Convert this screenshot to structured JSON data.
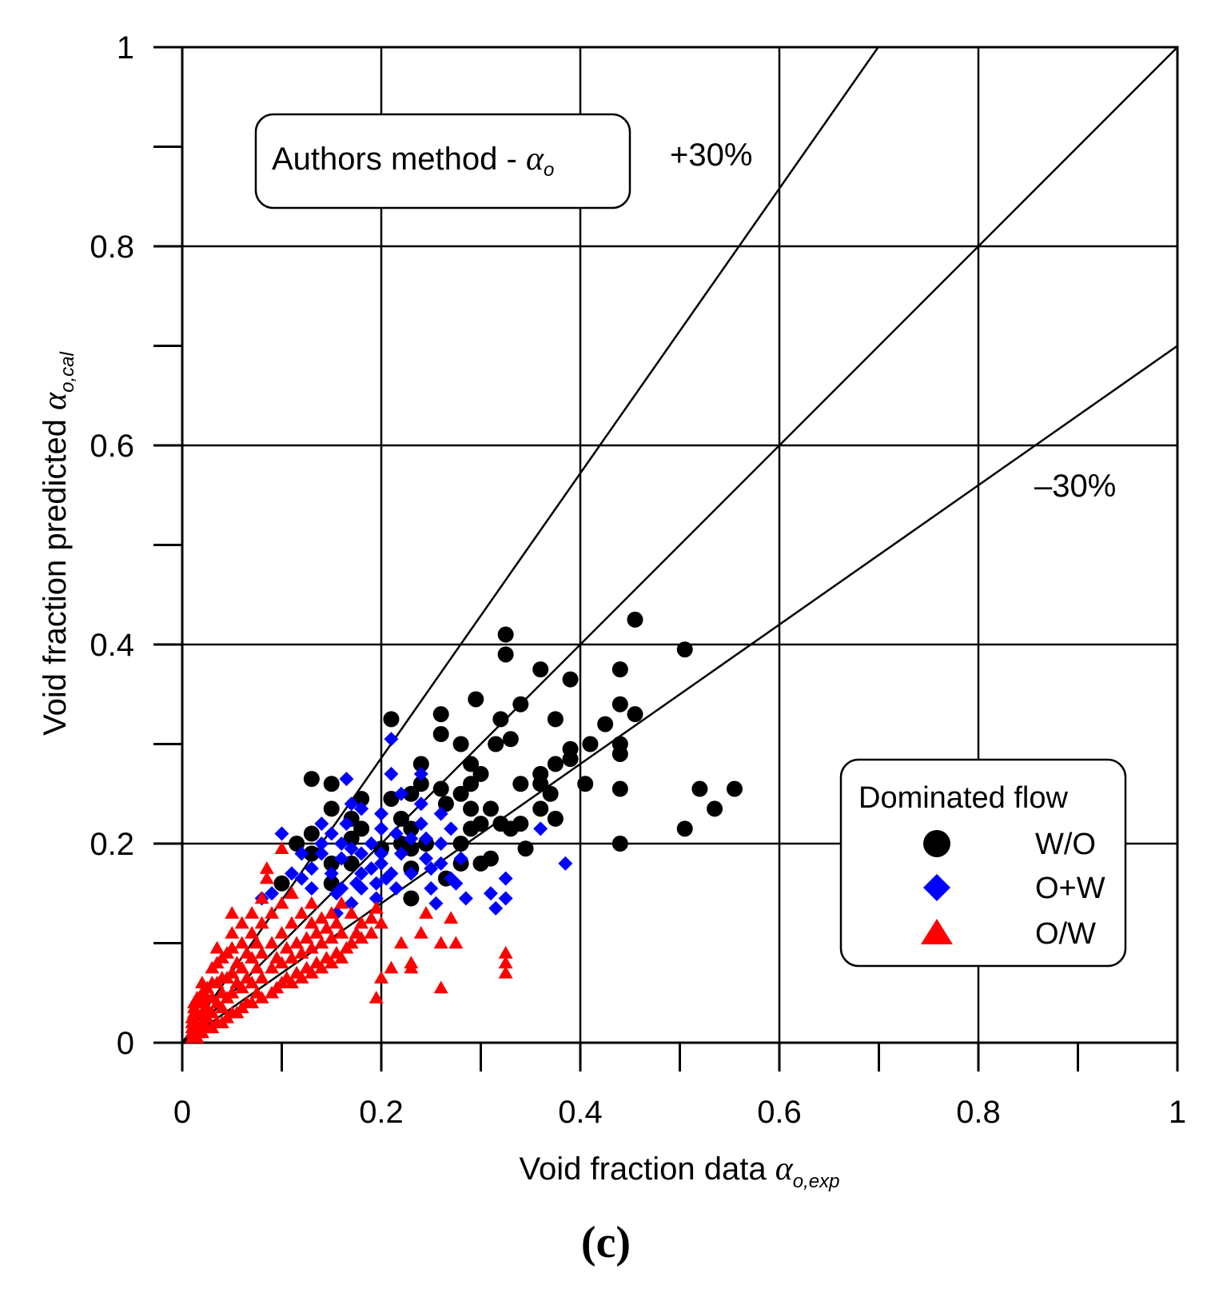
{
  "chart_data": {
    "type": "scatter",
    "title": "",
    "xlabel": "Void fraction data",
    "xlabel_symbol": "α",
    "xlabel_sub": "o,exp",
    "ylabel": "Void fraction predicted",
    "ylabel_symbol": "α",
    "ylabel_sub": "o,cal",
    "xlim": [
      0,
      1
    ],
    "ylim": [
      0,
      1
    ],
    "x_ticks": [
      "0",
      "0.2",
      "0.4",
      "0.6",
      "0.8",
      "1"
    ],
    "y_ticks": [
      "0",
      "0.2",
      "0.4",
      "0.6",
      "0.8",
      "1"
    ],
    "grid": true,
    "annotation_box": {
      "text": "Authors method - ",
      "symbol": "α",
      "sub": "o"
    },
    "reference_lines": [
      {
        "name": "+30%",
        "label": "+30%",
        "slope": 1.43
      },
      {
        "name": "parity",
        "label": "",
        "slope": 1.0
      },
      {
        "name": "-30%",
        "label": "–30%",
        "slope": 0.7
      }
    ],
    "legend": {
      "title": "Dominated flow",
      "position": "bottom-right"
    },
    "series": [
      {
        "name": "W/O",
        "marker": "circle",
        "color": "#000000",
        "points": [
          [
            0.1,
            0.16
          ],
          [
            0.13,
            0.265
          ],
          [
            0.15,
            0.26
          ],
          [
            0.15,
            0.235
          ],
          [
            0.13,
            0.21
          ],
          [
            0.115,
            0.2
          ],
          [
            0.13,
            0.19
          ],
          [
            0.15,
            0.18
          ],
          [
            0.15,
            0.16
          ],
          [
            0.17,
            0.225
          ],
          [
            0.17,
            0.205
          ],
          [
            0.17,
            0.18
          ],
          [
            0.18,
            0.245
          ],
          [
            0.18,
            0.215
          ],
          [
            0.2,
            0.195
          ],
          [
            0.21,
            0.325
          ],
          [
            0.21,
            0.245
          ],
          [
            0.22,
            0.225
          ],
          [
            0.22,
            0.2
          ],
          [
            0.23,
            0.25
          ],
          [
            0.23,
            0.215
          ],
          [
            0.23,
            0.195
          ],
          [
            0.23,
            0.175
          ],
          [
            0.23,
            0.145
          ],
          [
            0.24,
            0.28
          ],
          [
            0.24,
            0.26
          ],
          [
            0.245,
            0.2
          ],
          [
            0.26,
            0.255
          ],
          [
            0.26,
            0.33
          ],
          [
            0.26,
            0.31
          ],
          [
            0.265,
            0.24
          ],
          [
            0.265,
            0.165
          ],
          [
            0.28,
            0.3
          ],
          [
            0.28,
            0.25
          ],
          [
            0.28,
            0.2
          ],
          [
            0.28,
            0.18
          ],
          [
            0.29,
            0.28
          ],
          [
            0.29,
            0.26
          ],
          [
            0.29,
            0.235
          ],
          [
            0.29,
            0.215
          ],
          [
            0.295,
            0.345
          ],
          [
            0.3,
            0.27
          ],
          [
            0.3,
            0.22
          ],
          [
            0.3,
            0.18
          ],
          [
            0.31,
            0.235
          ],
          [
            0.31,
            0.185
          ],
          [
            0.315,
            0.3
          ],
          [
            0.32,
            0.325
          ],
          [
            0.32,
            0.22
          ],
          [
            0.325,
            0.41
          ],
          [
            0.325,
            0.39
          ],
          [
            0.33,
            0.305
          ],
          [
            0.33,
            0.215
          ],
          [
            0.34,
            0.34
          ],
          [
            0.34,
            0.26
          ],
          [
            0.34,
            0.22
          ],
          [
            0.345,
            0.195
          ],
          [
            0.36,
            0.375
          ],
          [
            0.36,
            0.27
          ],
          [
            0.36,
            0.26
          ],
          [
            0.36,
            0.235
          ],
          [
            0.37,
            0.25
          ],
          [
            0.375,
            0.325
          ],
          [
            0.375,
            0.28
          ],
          [
            0.375,
            0.225
          ],
          [
            0.39,
            0.365
          ],
          [
            0.39,
            0.295
          ],
          [
            0.39,
            0.285
          ],
          [
            0.405,
            0.26
          ],
          [
            0.41,
            0.3
          ],
          [
            0.425,
            0.32
          ],
          [
            0.44,
            0.375
          ],
          [
            0.44,
            0.34
          ],
          [
            0.44,
            0.3
          ],
          [
            0.44,
            0.29
          ],
          [
            0.44,
            0.255
          ],
          [
            0.44,
            0.2
          ],
          [
            0.455,
            0.425
          ],
          [
            0.455,
            0.33
          ],
          [
            0.505,
            0.395
          ],
          [
            0.505,
            0.215
          ],
          [
            0.52,
            0.255
          ],
          [
            0.535,
            0.235
          ],
          [
            0.555,
            0.255
          ]
        ]
      },
      {
        "name": "O+W",
        "marker": "diamond",
        "color": "#0000ff",
        "points": [
          [
            0.1,
            0.21
          ],
          [
            0.08,
            0.145
          ],
          [
            0.09,
            0.15
          ],
          [
            0.11,
            0.17
          ],
          [
            0.12,
            0.165
          ],
          [
            0.12,
            0.19
          ],
          [
            0.13,
            0.175
          ],
          [
            0.13,
            0.155
          ],
          [
            0.14,
            0.22
          ],
          [
            0.14,
            0.2
          ],
          [
            0.14,
            0.19
          ],
          [
            0.15,
            0.21
          ],
          [
            0.15,
            0.17
          ],
          [
            0.155,
            0.15
          ],
          [
            0.155,
            0.13
          ],
          [
            0.16,
            0.2
          ],
          [
            0.16,
            0.185
          ],
          [
            0.16,
            0.155
          ],
          [
            0.165,
            0.22
          ],
          [
            0.165,
            0.265
          ],
          [
            0.17,
            0.24
          ],
          [
            0.17,
            0.195
          ],
          [
            0.17,
            0.14
          ],
          [
            0.175,
            0.16
          ],
          [
            0.18,
            0.19
          ],
          [
            0.18,
            0.17
          ],
          [
            0.18,
            0.155
          ],
          [
            0.18,
            0.235
          ],
          [
            0.19,
            0.2
          ],
          [
            0.19,
            0.175
          ],
          [
            0.195,
            0.16
          ],
          [
            0.195,
            0.145
          ],
          [
            0.2,
            0.23
          ],
          [
            0.2,
            0.215
          ],
          [
            0.2,
            0.19
          ],
          [
            0.2,
            0.18
          ],
          [
            0.205,
            0.165
          ],
          [
            0.21,
            0.305
          ],
          [
            0.21,
            0.27
          ],
          [
            0.21,
            0.17
          ],
          [
            0.215,
            0.21
          ],
          [
            0.215,
            0.155
          ],
          [
            0.22,
            0.25
          ],
          [
            0.22,
            0.19
          ],
          [
            0.23,
            0.17
          ],
          [
            0.23,
            0.205
          ],
          [
            0.24,
            0.27
          ],
          [
            0.24,
            0.24
          ],
          [
            0.24,
            0.22
          ],
          [
            0.245,
            0.205
          ],
          [
            0.245,
            0.185
          ],
          [
            0.25,
            0.175
          ],
          [
            0.25,
            0.155
          ],
          [
            0.255,
            0.14
          ],
          [
            0.26,
            0.23
          ],
          [
            0.26,
            0.18
          ],
          [
            0.26,
            0.2
          ],
          [
            0.27,
            0.215
          ],
          [
            0.27,
            0.165
          ],
          [
            0.275,
            0.16
          ],
          [
            0.28,
            0.185
          ],
          [
            0.285,
            0.145
          ],
          [
            0.31,
            0.15
          ],
          [
            0.315,
            0.135
          ],
          [
            0.325,
            0.165
          ],
          [
            0.325,
            0.145
          ],
          [
            0.36,
            0.215
          ],
          [
            0.385,
            0.18
          ]
        ]
      },
      {
        "name": "O/W",
        "marker": "triangle",
        "color": "#ff0000",
        "points": [
          [
            0.01,
            0.005
          ],
          [
            0.01,
            0.01
          ],
          [
            0.01,
            0.015
          ],
          [
            0.01,
            0.02
          ],
          [
            0.01,
            0.025
          ],
          [
            0.012,
            0.03
          ],
          [
            0.012,
            0.035
          ],
          [
            0.012,
            0.04
          ],
          [
            0.015,
            0.005
          ],
          [
            0.015,
            0.01
          ],
          [
            0.015,
            0.015
          ],
          [
            0.015,
            0.02
          ],
          [
            0.015,
            0.03
          ],
          [
            0.015,
            0.045
          ],
          [
            0.02,
            0.01
          ],
          [
            0.02,
            0.02
          ],
          [
            0.02,
            0.03
          ],
          [
            0.02,
            0.04
          ],
          [
            0.02,
            0.05
          ],
          [
            0.02,
            0.06
          ],
          [
            0.025,
            0.015
          ],
          [
            0.025,
            0.025
          ],
          [
            0.025,
            0.035
          ],
          [
            0.025,
            0.045
          ],
          [
            0.025,
            0.055
          ],
          [
            0.03,
            0.015
          ],
          [
            0.03,
            0.03
          ],
          [
            0.03,
            0.045
          ],
          [
            0.03,
            0.06
          ],
          [
            0.03,
            0.075
          ],
          [
            0.035,
            0.02
          ],
          [
            0.035,
            0.04
          ],
          [
            0.035,
            0.06
          ],
          [
            0.035,
            0.08
          ],
          [
            0.035,
            0.095
          ],
          [
            0.04,
            0.02
          ],
          [
            0.04,
            0.035
          ],
          [
            0.04,
            0.05
          ],
          [
            0.04,
            0.065
          ],
          [
            0.04,
            0.085
          ],
          [
            0.045,
            0.025
          ],
          [
            0.045,
            0.045
          ],
          [
            0.045,
            0.065
          ],
          [
            0.045,
            0.09
          ],
          [
            0.05,
            0.03
          ],
          [
            0.05,
            0.05
          ],
          [
            0.05,
            0.07
          ],
          [
            0.05,
            0.095
          ],
          [
            0.05,
            0.11
          ],
          [
            0.05,
            0.13
          ],
          [
            0.055,
            0.03
          ],
          [
            0.055,
            0.06
          ],
          [
            0.055,
            0.08
          ],
          [
            0.06,
            0.035
          ],
          [
            0.06,
            0.055
          ],
          [
            0.06,
            0.075
          ],
          [
            0.06,
            0.1
          ],
          [
            0.06,
            0.12
          ],
          [
            0.065,
            0.04
          ],
          [
            0.065,
            0.065
          ],
          [
            0.065,
            0.09
          ],
          [
            0.07,
            0.04
          ],
          [
            0.07,
            0.06
          ],
          [
            0.07,
            0.085
          ],
          [
            0.07,
            0.11
          ],
          [
            0.07,
            0.13
          ],
          [
            0.075,
            0.05
          ],
          [
            0.075,
            0.075
          ],
          [
            0.075,
            0.1
          ],
          [
            0.08,
            0.045
          ],
          [
            0.08,
            0.065
          ],
          [
            0.08,
            0.09
          ],
          [
            0.08,
            0.12
          ],
          [
            0.08,
            0.145
          ],
          [
            0.085,
            0.175
          ],
          [
            0.085,
            0.165
          ],
          [
            0.09,
            0.05
          ],
          [
            0.09,
            0.075
          ],
          [
            0.09,
            0.1
          ],
          [
            0.09,
            0.13
          ],
          [
            0.095,
            0.055
          ],
          [
            0.095,
            0.085
          ],
          [
            0.1,
            0.06
          ],
          [
            0.1,
            0.08
          ],
          [
            0.1,
            0.11
          ],
          [
            0.1,
            0.14
          ],
          [
            0.1,
            0.195
          ],
          [
            0.105,
            0.065
          ],
          [
            0.105,
            0.095
          ],
          [
            0.11,
            0.06
          ],
          [
            0.11,
            0.085
          ],
          [
            0.11,
            0.12
          ],
          [
            0.11,
            0.15
          ],
          [
            0.115,
            0.07
          ],
          [
            0.115,
            0.1
          ],
          [
            0.12,
            0.065
          ],
          [
            0.12,
            0.09
          ],
          [
            0.12,
            0.13
          ],
          [
            0.125,
            0.075
          ],
          [
            0.125,
            0.105
          ],
          [
            0.13,
            0.07
          ],
          [
            0.13,
            0.095
          ],
          [
            0.13,
            0.12
          ],
          [
            0.13,
            0.14
          ],
          [
            0.135,
            0.08
          ],
          [
            0.135,
            0.11
          ],
          [
            0.14,
            0.075
          ],
          [
            0.14,
            0.1
          ],
          [
            0.14,
            0.125
          ],
          [
            0.145,
            0.085
          ],
          [
            0.145,
            0.115
          ],
          [
            0.15,
            0.08
          ],
          [
            0.15,
            0.105
          ],
          [
            0.15,
            0.13
          ],
          [
            0.155,
            0.09
          ],
          [
            0.155,
            0.12
          ],
          [
            0.16,
            0.085
          ],
          [
            0.16,
            0.11
          ],
          [
            0.16,
            0.14
          ],
          [
            0.165,
            0.095
          ],
          [
            0.17,
            0.1
          ],
          [
            0.17,
            0.13
          ],
          [
            0.175,
            0.11
          ],
          [
            0.18,
            0.105
          ],
          [
            0.18,
            0.12
          ],
          [
            0.19,
            0.11
          ],
          [
            0.19,
            0.125
          ],
          [
            0.195,
            0.135
          ],
          [
            0.2,
            0.12
          ],
          [
            0.2,
            0.065
          ],
          [
            0.195,
            0.045
          ],
          [
            0.21,
            0.075
          ],
          [
            0.22,
            0.1
          ],
          [
            0.23,
            0.075
          ],
          [
            0.23,
            0.08
          ],
          [
            0.24,
            0.11
          ],
          [
            0.245,
            0.13
          ],
          [
            0.26,
            0.1
          ],
          [
            0.26,
            0.055
          ],
          [
            0.27,
            0.125
          ],
          [
            0.275,
            0.1
          ],
          [
            0.325,
            0.09
          ],
          [
            0.325,
            0.08
          ],
          [
            0.325,
            0.07
          ]
        ]
      }
    ],
    "caption": "(c)"
  }
}
